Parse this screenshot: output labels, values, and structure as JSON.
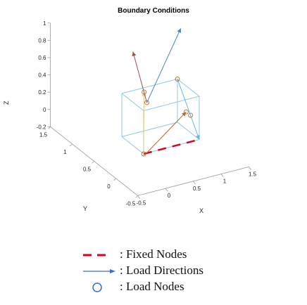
{
  "chart_data": {
    "type": "scatter",
    "projection": "3d",
    "title": "Boundary Conditions",
    "xlabel": "X",
    "ylabel": "Y",
    "zlabel": "Z",
    "xlim": [
      -0.5,
      1.5
    ],
    "ylim": [
      -0.5,
      1.5
    ],
    "zlim": [
      -0.2,
      1
    ],
    "x_ticks": [
      "-0.5",
      "0",
      "0.5",
      "1",
      "1.5"
    ],
    "y_ticks": [
      "-0.5",
      "0",
      "0.5",
      "1",
      "1.5"
    ],
    "z_ticks": [
      "-0.2",
      "0",
      "0.2",
      "0.4",
      "0.6",
      "0.8",
      "1"
    ],
    "grid": false,
    "domain_box": {
      "x": [
        0,
        1
      ],
      "y": [
        0,
        0.5
      ],
      "z": [
        0,
        0.5
      ]
    },
    "fixed_edge": [
      [
        0,
        0,
        0
      ],
      [
        1,
        0,
        0
      ]
    ],
    "load_nodes": [
      [
        0,
        0,
        0
      ],
      [
        0.4,
        0.5,
        0.45
      ],
      [
        0.45,
        0.5,
        0.32
      ],
      [
        1,
        0.5,
        0.5
      ],
      [
        1,
        0.3,
        0.2
      ],
      [
        1,
        0.2,
        0.2
      ]
    ],
    "load_vectors": [
      {
        "from": [
          0.0,
          0.0,
          0.0
        ],
        "to": [
          0.4,
          0.5,
          0.45
        ],
        "color": "#d4d08a"
      },
      {
        "from": [
          0.45,
          0.5,
          0.32
        ],
        "to": [
          0.2,
          0.5,
          0.95
        ],
        "color": "#a05050"
      },
      {
        "from": [
          0.45,
          0.5,
          0.32
        ],
        "to": [
          1.1,
          0.55,
          1.05
        ],
        "color": "#4a82c8"
      },
      {
        "from": [
          0.05,
          0.0,
          0.0
        ],
        "to": [
          1.0,
          0.3,
          0.2
        ],
        "color": "#c06a2a"
      },
      {
        "from": [
          1.0,
          0.5,
          0.5
        ],
        "to": [
          1.0,
          0.0,
          0.0
        ],
        "color": "#60b8d8"
      }
    ],
    "colors": {
      "box_edge": "#8ec8e6",
      "fixed": "#d8001a",
      "load_direction": "#3a6fc0",
      "node_marker": "#c06a2a",
      "axis": "#999999"
    },
    "legend": [
      {
        "symbol": "dash-line",
        "label": ": Fixed Nodes"
      },
      {
        "symbol": "arrow",
        "label": ": Load Directions"
      },
      {
        "symbol": "circle",
        "label": ": Load Nodes"
      }
    ]
  }
}
